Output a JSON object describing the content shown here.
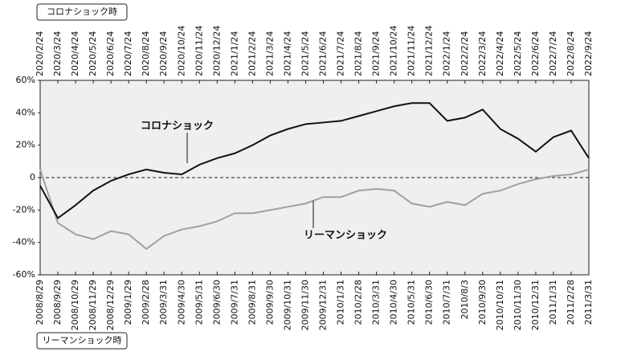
{
  "chart_data": {
    "type": "line",
    "top_axis_title": "コロナショック時",
    "bottom_axis_title": "リーマンショック時",
    "top_categories": [
      "2020/2/24",
      "2020/3/24",
      "2020/4/24",
      "2020/5/24",
      "2020/6/24",
      "2020/7/24",
      "2020/8/24",
      "2020/9/24",
      "2020/10/24",
      "2020/11/24",
      "2020/12/24",
      "2021/1/24",
      "2021/2/24",
      "2021/3/24",
      "2021/4/24",
      "2021/5/24",
      "2021/6/24",
      "2021/7/24",
      "2021/8/24",
      "2021/9/24",
      "2021/10/24",
      "2021/11/24",
      "2021/12/24",
      "2022/1/24",
      "2022/2/24",
      "2022/3/24",
      "2022/4/24",
      "2022/5/24",
      "2022/6/24",
      "2022/7/24",
      "2022/8/24",
      "2022/9/24"
    ],
    "categories": [
      "2008/8/29",
      "2008/9/29",
      "2008/10/29",
      "2008/11/29",
      "2008/12/29",
      "2009/1/29",
      "2009/2/28",
      "2009/3/31",
      "2009/4/30",
      "2009/5/31",
      "2009/6/30",
      "2009/7/31",
      "2009/8/31",
      "2009/9/30",
      "2009/10/31",
      "2009/11/30",
      "2009/12/31",
      "2010/1/31",
      "2010/2/28",
      "2010/3/31",
      "2010/4/30",
      "2010/5/31",
      "2010/6/30",
      "2010/7/31",
      "2010/8/3",
      "2010/9/30",
      "2010/10/31",
      "2010/11/30",
      "2010/12/31",
      "2011/1/31",
      "2011/2/28",
      "2011/3/31"
    ],
    "series": [
      {
        "name": "コロナショック",
        "color": "#111111",
        "values": [
          -5,
          -25,
          -17,
          -8,
          -2,
          2,
          5,
          3,
          2,
          8,
          12,
          15,
          20,
          26,
          30,
          33,
          34,
          35,
          38,
          41,
          44,
          46,
          46,
          35,
          37,
          42,
          30,
          24,
          16,
          25,
          29,
          12
        ]
      },
      {
        "name": "リーマンショック",
        "color": "#a0a0a0",
        "values": [
          5,
          -28,
          -35,
          -38,
          -33,
          -35,
          -44,
          -36,
          -32,
          -30,
          -27,
          -22,
          -22,
          -20,
          -18,
          -16,
          -12,
          -12,
          -8,
          -7,
          -8,
          -16,
          -18,
          -15,
          -17,
          -10,
          -8,
          -4,
          -1,
          1,
          2,
          5
        ]
      }
    ],
    "ylim": [
      -60,
      60
    ],
    "yticks": [
      {
        "value": -60,
        "label": "-60%"
      },
      {
        "value": -40,
        "label": "-40%"
      },
      {
        "value": -20,
        "label": "-20%"
      },
      0,
      {
        "value": 20,
        "label": "20%"
      },
      {
        "value": 40,
        "label": "40%"
      },
      {
        "value": 60,
        "label": "60%"
      }
    ]
  }
}
